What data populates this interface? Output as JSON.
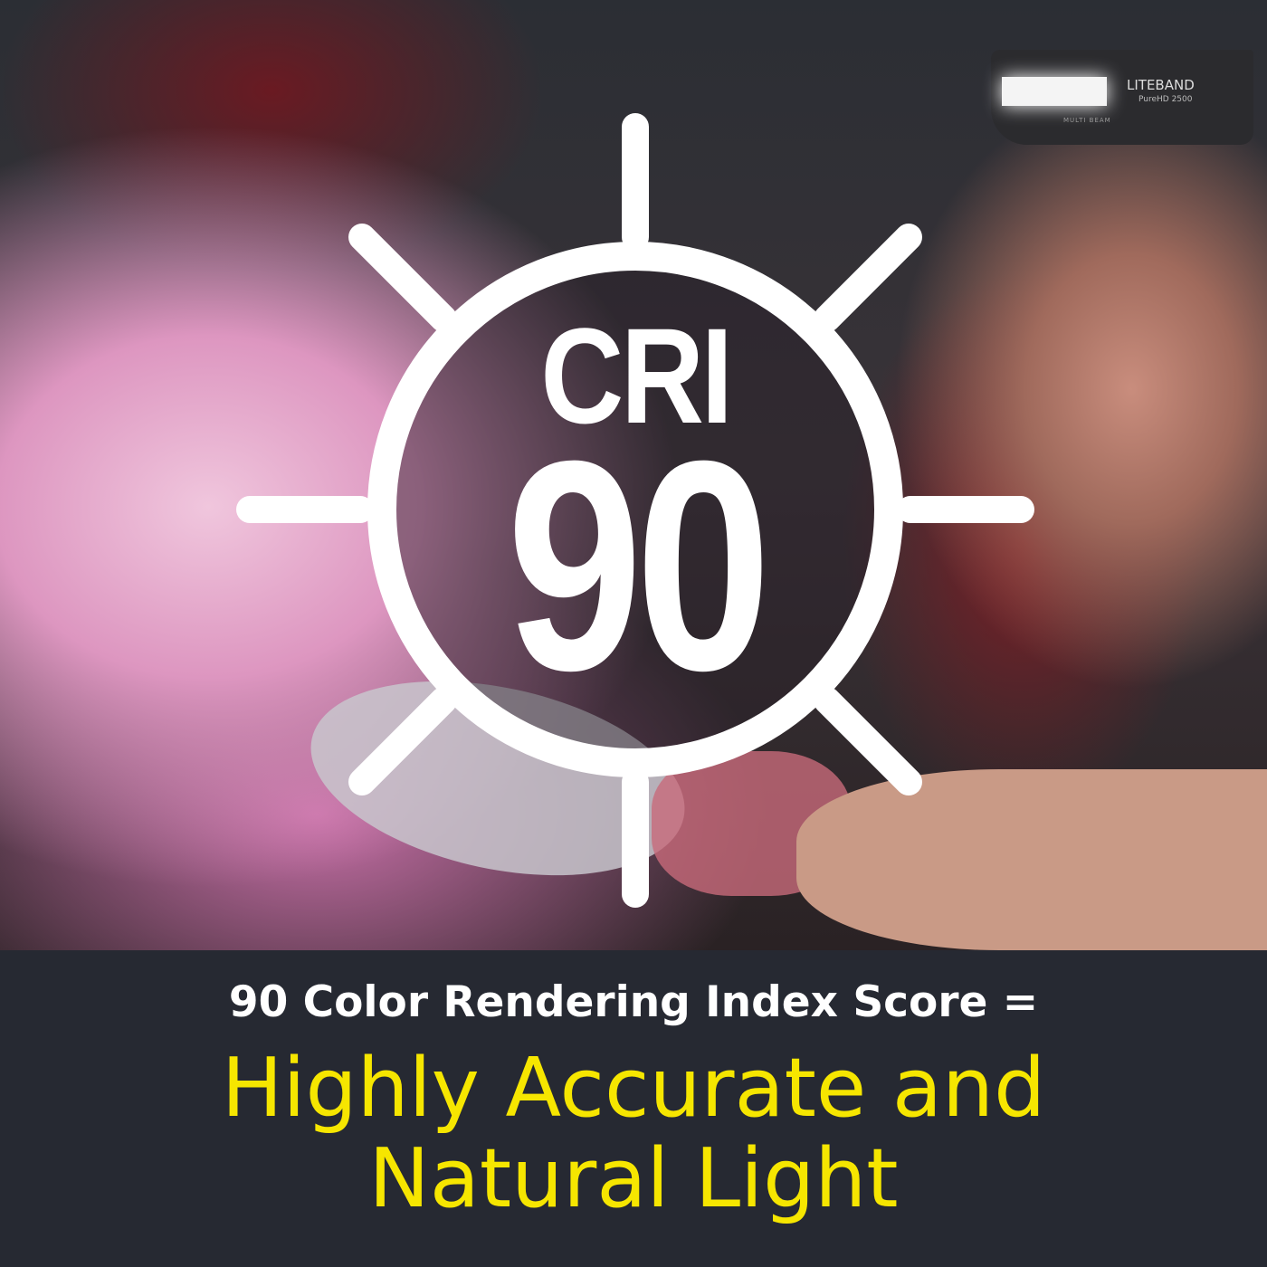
{
  "badge": {
    "label": "CRI",
    "value": "90",
    "icon": "sun-icon"
  },
  "product": {
    "brand": "LITEBAND",
    "model": "PureHD 2500",
    "beam_label": "MULTI BEAM"
  },
  "caption": {
    "headline": "90 Color Rendering Index Score =",
    "tagline_line1": "Highly Accurate and",
    "tagline_line2": "Natural Light"
  },
  "colors": {
    "caption_bg": "#262932",
    "accent_yellow": "#f6e600",
    "badge_white": "#ffffff"
  }
}
